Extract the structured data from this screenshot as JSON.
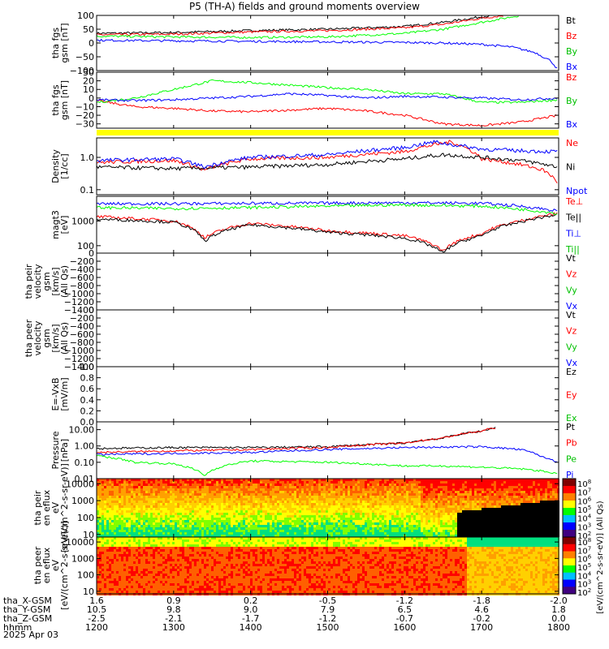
{
  "title": "P5 (TH-A) fields and ground moments overview",
  "date": "2025 Apr 03",
  "footer": {
    "rows": [
      {
        "label": "tha_X-GSM",
        "values": [
          "1.6",
          "0.9",
          "0.2",
          "-0.5",
          "-1.2",
          "-1.8",
          "-2.0"
        ]
      },
      {
        "label": "tha_Y-GSM",
        "values": [
          "10.5",
          "9.8",
          "9.0",
          "7.9",
          "6.5",
          "4.6",
          "1.8"
        ]
      },
      {
        "label": "tha_Z-GSM",
        "values": [
          "-2.5",
          "-2.1",
          "-1.7",
          "-1.2",
          "-0.7",
          "-0.2",
          "0.0"
        ]
      },
      {
        "label": "hhmm",
        "values": [
          "1200",
          "1300",
          "1400",
          "1500",
          "1600",
          "1700",
          "1800"
        ]
      }
    ]
  },
  "colors": {
    "black": "#000000",
    "red": "#ff0000",
    "green": "#00ff00",
    "blue": "#0000ff",
    "yellow": "#ffff00"
  },
  "chart_data": [
    {
      "type": "line",
      "ylabel": "tha fgs gsm [nT]",
      "ylim": [
        -100,
        100
      ],
      "ticks": [
        "100",
        "50",
        "0",
        "−50",
        "−100"
      ],
      "tick_values": [
        100,
        50,
        0,
        -50,
        -100
      ],
      "series": [
        {
          "name": "Bt",
          "color": "#000000",
          "x": [
            1200,
            1300,
            1400,
            1500,
            1600,
            1650,
            1700,
            1720
          ],
          "values": [
            35,
            38,
            45,
            50,
            60,
            75,
            95,
            102
          ]
        },
        {
          "name": "Bz",
          "color": "#ff0000",
          "x": [
            1200,
            1300,
            1400,
            1500,
            1600,
            1650,
            1700,
            1730
          ],
          "values": [
            30,
            32,
            40,
            45,
            55,
            68,
            90,
            100
          ]
        },
        {
          "name": "By",
          "color": "#00ff00",
          "x": [
            1200,
            1300,
            1400,
            1500,
            1600,
            1650,
            1700,
            1750
          ],
          "values": [
            25,
            22,
            20,
            22,
            35,
            50,
            75,
            100
          ]
        },
        {
          "name": "Bx",
          "color": "#0000ff",
          "x": [
            1200,
            1300,
            1400,
            1500,
            1600,
            1650,
            1700,
            1740,
            1770,
            1790,
            1800
          ],
          "values": [
            10,
            8,
            6,
            4,
            2,
            0,
            -5,
            -15,
            -35,
            -65,
            -100
          ]
        }
      ]
    },
    {
      "type": "line",
      "ylabel": "tha fgs gsm [nT]",
      "ylim": [
        -35,
        30
      ],
      "ticks": [
        "30",
        "20",
        "10",
        "0",
        "−10",
        "−20",
        "−30"
      ],
      "tick_values": [
        30,
        20,
        10,
        0,
        -10,
        -20,
        -30
      ],
      "series": [
        {
          "name": "Bz",
          "color": "#ff0000",
          "x": [
            1200,
            1250,
            1300,
            1350,
            1400,
            1450,
            1500,
            1550,
            1600,
            1650,
            1700,
            1750,
            1800
          ],
          "values": [
            -3,
            -10,
            -12,
            -15,
            -16,
            -14,
            -12,
            -15,
            -20,
            -30,
            -32,
            -28,
            -20
          ]
        },
        {
          "name": "By",
          "color": "#00ff00",
          "x": [
            1200,
            1250,
            1300,
            1350,
            1400,
            1450,
            1500,
            1550,
            1600,
            1650,
            1700,
            1750,
            1800
          ],
          "values": [
            -5,
            0,
            10,
            20,
            18,
            15,
            12,
            10,
            5,
            5,
            -5,
            -5,
            -2
          ]
        },
        {
          "name": "Bx",
          "color": "#0000ff",
          "x": [
            1200,
            1250,
            1300,
            1350,
            1400,
            1450,
            1500,
            1550,
            1600,
            1650,
            1700,
            1750,
            1800
          ],
          "values": [
            -2,
            -3,
            -2,
            0,
            2,
            5,
            3,
            0,
            2,
            1,
            0,
            -2,
            0
          ]
        }
      ]
    },
    {
      "type": "line",
      "ylabel": "Density [1/cc]",
      "yscale": "log",
      "ylim": [
        0.07,
        4
      ],
      "ticks": [
        "1.0",
        "0.1"
      ],
      "tick_values": [
        1.0,
        0.1
      ],
      "series": [
        {
          "name": "Ne",
          "color": "#ff0000",
          "x": [
            1200,
            1300,
            1340,
            1400,
            1500,
            1600,
            1640,
            1660,
            1700,
            1750,
            1780,
            1800
          ],
          "values": [
            0.7,
            0.8,
            0.4,
            0.9,
            1.0,
            1.5,
            2.5,
            3.0,
            0.9,
            0.6,
            0.4,
            0.15
          ]
        },
        {
          "name": "Ni",
          "color": "#000000",
          "x": [
            1200,
            1300,
            1400,
            1500,
            1600,
            1650,
            1700,
            1750,
            1800
          ],
          "values": [
            0.5,
            0.45,
            0.5,
            0.6,
            0.9,
            1.2,
            1.0,
            0.8,
            0.5
          ]
        },
        {
          "name": "Npot",
          "color": "#0000ff",
          "x": [
            1200,
            1300,
            1340,
            1400,
            1500,
            1600,
            1640,
            1660,
            1700,
            1750,
            1800
          ],
          "values": [
            0.8,
            0.9,
            0.5,
            1.0,
            1.2,
            2.0,
            3.0,
            2.5,
            1.8,
            1.6,
            1.5
          ]
        }
      ]
    },
    {
      "type": "line",
      "ylabel": "magt3 [eV]",
      "yscale": "log",
      "ylim": [
        50,
        10000
      ],
      "ticks": [
        "1000",
        "100"
      ],
      "tick_values": [
        1000,
        100
      ],
      "series": [
        {
          "name": "Te⊥",
          "color": "#ff0000",
          "x": [
            1200,
            1300,
            1340,
            1400,
            1500,
            1600,
            1650,
            1700,
            1750,
            1800
          ],
          "values": [
            1500,
            1000,
            200,
            800,
            400,
            250,
            60,
            300,
            1000,
            2000
          ]
        },
        {
          "name": "Te||",
          "color": "#000000",
          "x": [
            1200,
            1300,
            1340,
            1400,
            1500,
            1600,
            1650,
            1700,
            1750,
            1800
          ],
          "values": [
            1200,
            900,
            150,
            700,
            350,
            200,
            50,
            250,
            900,
            1800
          ]
        },
        {
          "name": "Ti⊥",
          "color": "#0000ff",
          "x": [
            1200,
            1300,
            1400,
            1500,
            1600,
            1700,
            1750,
            1800
          ],
          "values": [
            5000,
            5000,
            5200,
            5300,
            5500,
            5200,
            4000,
            2500
          ]
        },
        {
          "name": "Ti||",
          "color": "#00ff00",
          "x": [
            1200,
            1300,
            1400,
            1500,
            1600,
            1700,
            1750,
            1800
          ],
          "values": [
            3500,
            3200,
            3500,
            4000,
            4500,
            4000,
            3000,
            2000
          ]
        }
      ]
    },
    {
      "type": "line",
      "ylabel": "tha peir velocity gsm [km/s] (All Qs)",
      "ylim": [
        -1400,
        0
      ],
      "ticks": [
        "0",
        "−200",
        "−400",
        "−600",
        "−800",
        "−1000",
        "−1200",
        "−1400"
      ],
      "tick_values": [
        0,
        -200,
        -400,
        -600,
        -800,
        -1000,
        -1200,
        -1400
      ],
      "series": [
        {
          "name": "Vt"
        },
        {
          "name": "Vz"
        },
        {
          "name": "Vy"
        },
        {
          "name": "Vx"
        }
      ]
    },
    {
      "type": "line",
      "ylabel": "tha peer velocity gsm [km/s] (All Qs)",
      "ylim": [
        -1400,
        0
      ],
      "ticks": [
        "0",
        "−200",
        "−400",
        "−600",
        "−800",
        "−1000",
        "−1200",
        "−1400"
      ],
      "tick_values": [
        0,
        -200,
        -400,
        -600,
        -800,
        -1000,
        -1200,
        -1400
      ],
      "series": [
        {
          "name": "Vt"
        },
        {
          "name": "Vz"
        },
        {
          "name": "Vy"
        },
        {
          "name": "Vx"
        }
      ]
    },
    {
      "type": "line",
      "ylabel": "E=-VxB [mV/m]",
      "ylim": [
        0,
        1
      ],
      "ticks": [
        "1.0",
        "0.8",
        "0.6",
        "0.4",
        "0.2",
        "0.0"
      ],
      "tick_values": [
        1.0,
        0.8,
        0.6,
        0.4,
        0.2,
        0.0
      ],
      "series": [
        {
          "name": "Ez"
        },
        {
          "name": "Ey"
        },
        {
          "name": "Ex"
        }
      ]
    },
    {
      "type": "line",
      "ylabel": "Pressure [nPa]",
      "yscale": "log",
      "ylim": [
        0.01,
        30
      ],
      "ticks": [
        "10.00",
        "1.00",
        "0.10",
        "0.01"
      ],
      "tick_values": [
        10,
        1,
        0.1,
        0.01
      ],
      "series": [
        {
          "name": "Pt",
          "color": "#000000",
          "x": [
            1200,
            1300,
            1400,
            1500,
            1600,
            1650,
            1700,
            1720
          ],
          "values": [
            0.7,
            0.8,
            0.8,
            0.9,
            1.5,
            3,
            8,
            14
          ]
        },
        {
          "name": "Pb",
          "color": "#ff0000",
          "x": [
            1200,
            1300,
            1400,
            1500,
            1600,
            1650,
            1700,
            1720
          ],
          "values": [
            0.4,
            0.5,
            0.6,
            0.8,
            1.5,
            3,
            8,
            14
          ]
        },
        {
          "name": "Pe",
          "color": "#00ff00",
          "x": [
            1200,
            1250,
            1300,
            1340,
            1400,
            1500,
            1600,
            1650,
            1700,
            1750,
            1800
          ],
          "values": [
            0.25,
            0.1,
            0.08,
            0.015,
            0.12,
            0.1,
            0.06,
            0.06,
            0.05,
            0.04,
            0.02
          ]
        },
        {
          "name": "Pi",
          "color": "#0000ff",
          "x": [
            1200,
            1300,
            1400,
            1500,
            1600,
            1700,
            1750,
            1780,
            1800
          ],
          "values": [
            0.3,
            0.35,
            0.4,
            0.6,
            0.8,
            0.9,
            0.6,
            0.2,
            0.1
          ]
        }
      ]
    },
    {
      "type": "heatmap",
      "ylabel": "tha peir en eflux eV [eV/(cm^2-s-sr-eV)]",
      "yscale": "log",
      "ylim": [
        7,
        20000
      ],
      "ticks": [
        "10000",
        "1000",
        "100",
        "10"
      ],
      "tick_values": [
        10000,
        1000,
        100,
        10
      ],
      "colorbar_ticks": [
        "10^8",
        "10^7",
        "10^6",
        "10^5",
        "10^4",
        "10^3",
        "10^2"
      ]
    },
    {
      "type": "heatmap",
      "ylabel": "tha peer en eflux eV [eV/(cm^2-s-sr-eV)]",
      "yscale": "log",
      "ylim": [
        7,
        20000
      ],
      "ticks": [
        "10000",
        "1000",
        "100",
        "10"
      ],
      "tick_values": [
        10000,
        1000,
        100,
        10
      ],
      "colorbar_ticks": [
        "10^8",
        "10^7",
        "10^6",
        "10^5",
        "10^4",
        "10^3",
        "10^2"
      ],
      "colorbar_label": "[eV/(cm^2-s-sr-eV)] (All Qs)"
    }
  ]
}
